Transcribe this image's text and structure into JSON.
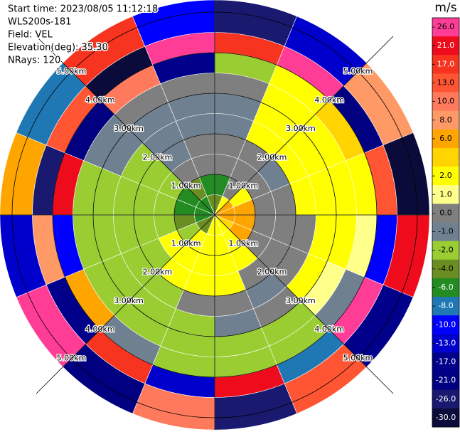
{
  "chart_data": {
    "type": "ppi",
    "header": [
      "Start time: 2023/08/05 11:12:18",
      "WLS200s-181",
      "Field: VEL",
      "Elevation(deg): 35.30",
      "NRays: 120"
    ],
    "field": {
      "range_edges": [
        0,
        0.5,
        1,
        1.5,
        2,
        2.5,
        3,
        3.5,
        4,
        4.5,
        5.3
      ],
      "azimuth_edges": [
        0,
        22.5,
        45,
        67.5,
        90,
        112.5,
        135,
        157.5,
        180,
        202.5,
        225,
        247.5,
        270,
        292.5,
        315,
        337.5,
        360
      ],
      "values": [
        [
          -4,
          -6,
          0,
          0,
          -1,
          -1,
          0,
          -2,
          17,
          -26
        ],
        [
          2,
          0,
          0,
          0,
          2,
          2,
          2,
          2,
          26,
          -13
        ],
        [
          6,
          2,
          0,
          -1,
          2,
          2,
          2,
          4,
          -21,
          8
        ],
        [
          6,
          6,
          0,
          0,
          2,
          2,
          2,
          2,
          13,
          -30
        ],
        [
          6,
          6,
          0,
          0,
          0,
          2,
          2,
          1,
          -10,
          21
        ],
        [
          4,
          6,
          0,
          0,
          0,
          2,
          1,
          -1,
          26,
          -17
        ],
        [
          2,
          2,
          2,
          0,
          -1,
          0,
          -2,
          -2,
          -8,
          13
        ],
        [
          2,
          2,
          2,
          2,
          0,
          -1,
          -2,
          -2,
          21,
          -26
        ],
        [
          2,
          2,
          2,
          2,
          0,
          -2,
          -2,
          -2,
          -13,
          10
        ],
        [
          -4,
          2,
          2,
          2,
          -2,
          -2,
          -2,
          -1,
          17,
          -21
        ],
        [
          -4,
          -2,
          2,
          -2,
          -2,
          -2,
          -2,
          6,
          -17,
          26
        ],
        [
          -6,
          -4,
          -2,
          -2,
          -2,
          -2,
          -2,
          -10,
          8,
          -13
        ],
        [
          -6,
          -6,
          -2,
          -2,
          -2,
          -2,
          -2,
          21,
          -26,
          6
        ],
        [
          -6,
          -6,
          -2,
          -2,
          -2,
          -1,
          -1,
          -21,
          13,
          -8
        ],
        [
          -6,
          -4,
          0,
          -1,
          -1,
          -1,
          0,
          10,
          -30,
          17
        ],
        [
          -4,
          -6,
          0,
          0,
          -1,
          -1,
          0,
          -17,
          26,
          -10
        ]
      ]
    },
    "range_rings": [
      {
        "value": 1,
        "label": "1.00km"
      },
      {
        "value": 2,
        "label": "2.00km"
      },
      {
        "value": 3,
        "label": "3.00km"
      },
      {
        "value": 4,
        "label": "4.00km"
      },
      {
        "value": 5,
        "label": "5.00km"
      }
    ],
    "colorbar": {
      "title": "m/s",
      "levels": [
        26,
        21,
        17,
        13,
        10,
        8,
        6,
        4,
        2,
        1,
        0,
        -1,
        -2,
        -4,
        -6,
        -8,
        -10,
        -13,
        -17,
        -21,
        -26,
        -30
      ],
      "colors": [
        "#ff3d96",
        "#ee0c1c",
        "#f7341f",
        "#ff5533",
        "#ff7a5c",
        "#ff9966",
        "#ffa500",
        "#ffd400",
        "#ffff00",
        "#ffff8c",
        "#7f7f7f",
        "#6f8090",
        "#9acd32",
        "#6b8e23",
        "#228b22",
        "#1f78b4",
        "#0000ff",
        "#0000cd",
        "#00008b",
        "#000080",
        "#191970",
        "#0b0b3b"
      ],
      "ticks": [
        {
          "value": 26,
          "label": "26.0"
        },
        {
          "value": 21,
          "label": "21.0"
        },
        {
          "value": 17,
          "label": "17.0"
        },
        {
          "value": 13,
          "label": "13.0"
        },
        {
          "value": 10,
          "label": "10.0"
        },
        {
          "value": 8,
          "label": "8.0"
        },
        {
          "value": 6,
          "label": "6.0"
        },
        {
          "value": 2,
          "label": "2.0"
        },
        {
          "value": 1,
          "label": "1.0"
        },
        {
          "value": 0,
          "label": "0.0"
        },
        {
          "value": -1,
          "label": "-1.0"
        },
        {
          "value": -2,
          "label": "-2.0"
        },
        {
          "value": -4,
          "label": "-4.0"
        },
        {
          "value": -6,
          "label": "-6.0"
        },
        {
          "value": -8,
          "label": "-8.0"
        },
        {
          "value": -10,
          "label": "-10.0"
        },
        {
          "value": -13,
          "label": "-13.0"
        },
        {
          "value": -17,
          "label": "-17.0"
        },
        {
          "value": -21,
          "label": "-21.0"
        },
        {
          "value": -26,
          "label": "-26.0"
        },
        {
          "value": -30,
          "label": "-30.0"
        }
      ]
    }
  }
}
